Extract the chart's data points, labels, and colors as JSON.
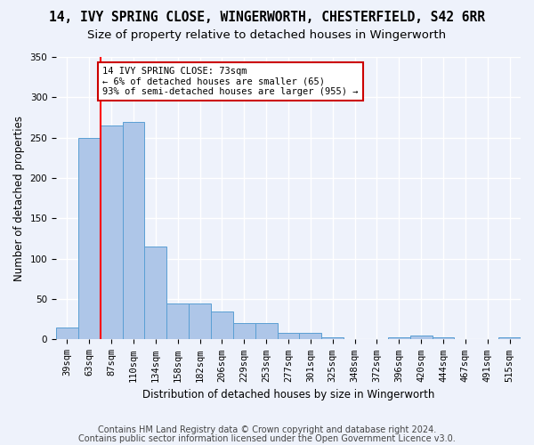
{
  "title_line1": "14, IVY SPRING CLOSE, WINGERWORTH, CHESTERFIELD, S42 6RR",
  "title_line2": "Size of property relative to detached houses in Wingerworth",
  "xlabel": "Distribution of detached houses by size in Wingerworth",
  "ylabel": "Number of detached properties",
  "categories": [
    "39sqm",
    "63sqm",
    "87sqm",
    "110sqm",
    "134sqm",
    "158sqm",
    "182sqm",
    "206sqm",
    "229sqm",
    "253sqm",
    "277sqm",
    "301sqm",
    "325sqm",
    "348sqm",
    "372sqm",
    "396sqm",
    "420sqm",
    "444sqm",
    "467sqm",
    "491sqm",
    "515sqm"
  ],
  "values": [
    15,
    250,
    265,
    270,
    115,
    45,
    45,
    35,
    20,
    20,
    8,
    8,
    3,
    0,
    0,
    3,
    5,
    3,
    0,
    0,
    3
  ],
  "bar_color": "#aec6e8",
  "bar_edge_color": "#5a9fd4",
  "red_line_x": 1.5,
  "annotation_text": "14 IVY SPRING CLOSE: 73sqm\n← 6% of detached houses are smaller (65)\n93% of semi-detached houses are larger (955) →",
  "annotation_box_color": "#ffffff",
  "annotation_box_edge": "#cc0000",
  "ylim": [
    0,
    350
  ],
  "yticks": [
    0,
    50,
    100,
    150,
    200,
    250,
    300,
    350
  ],
  "footer_line1": "Contains HM Land Registry data © Crown copyright and database right 2024.",
  "footer_line2": "Contains public sector information licensed under the Open Government Licence v3.0.",
  "background_color": "#eef2fb",
  "grid_color": "#ffffff",
  "title_fontsize": 10.5,
  "subtitle_fontsize": 9.5,
  "axis_label_fontsize": 8.5,
  "tick_fontsize": 7.5,
  "footer_fontsize": 7
}
